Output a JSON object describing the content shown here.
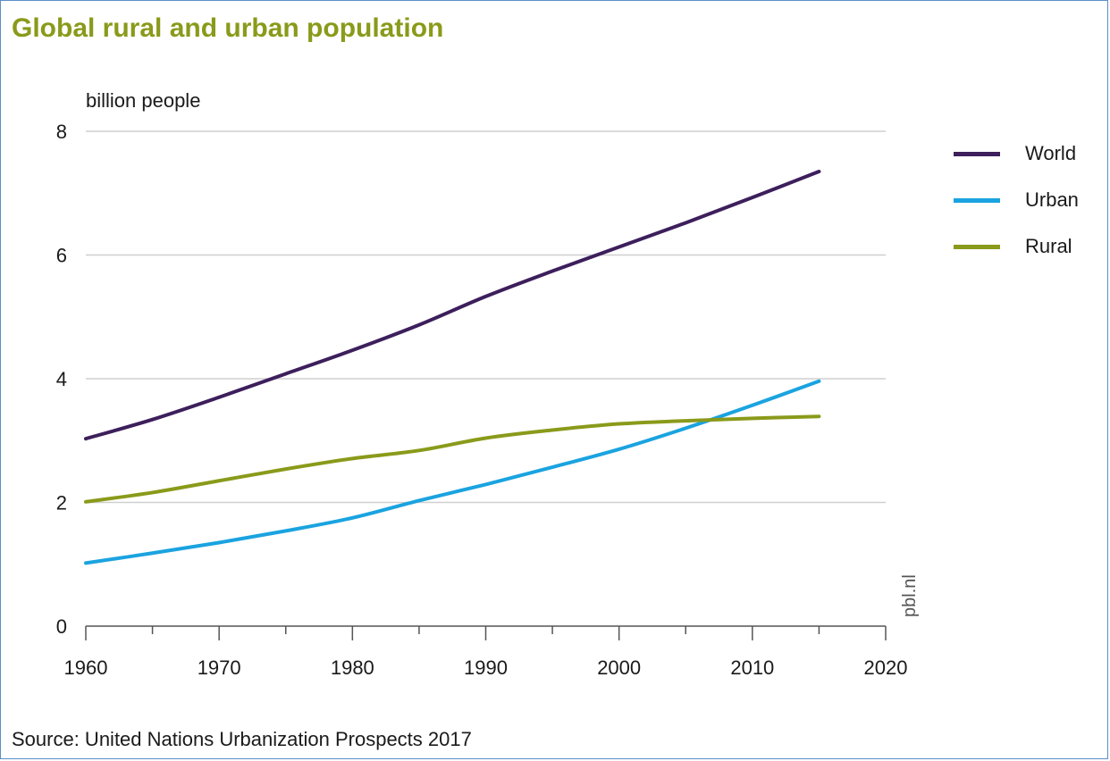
{
  "title": "Global rural and urban population",
  "source": "Source: United Nations Urbanization Prospects 2017",
  "watermark": "pbl.nl",
  "chart_data": {
    "type": "line",
    "title": "Global rural and urban population",
    "ylabel": "billion people",
    "xlabel": "",
    "xlim": [
      1960,
      2020
    ],
    "ylim": [
      0,
      8
    ],
    "x_ticks": [
      "1960",
      "1970",
      "1980",
      "1990",
      "2000",
      "2010",
      "2020"
    ],
    "y_ticks": [
      "0",
      "2",
      "4",
      "6",
      "8"
    ],
    "grid": "horizontal",
    "legend_position": "right",
    "x": [
      1960,
      1965,
      1970,
      1975,
      1980,
      1985,
      1990,
      1995,
      2000,
      2005,
      2010,
      2015
    ],
    "series": [
      {
        "name": "World",
        "color": "#3d1f5c",
        "values": [
          3.03,
          3.34,
          3.7,
          4.08,
          4.46,
          4.87,
          5.33,
          5.74,
          6.13,
          6.52,
          6.93,
          7.35
        ]
      },
      {
        "name": "Urban",
        "color": "#1aa3e0",
        "values": [
          1.02,
          1.18,
          1.35,
          1.54,
          1.75,
          2.03,
          2.29,
          2.57,
          2.86,
          3.2,
          3.57,
          3.96
        ]
      },
      {
        "name": "Rural",
        "color": "#8a9a1a",
        "values": [
          2.01,
          2.16,
          2.35,
          2.54,
          2.71,
          2.84,
          3.04,
          3.17,
          3.27,
          3.32,
          3.36,
          3.39
        ]
      }
    ]
  }
}
